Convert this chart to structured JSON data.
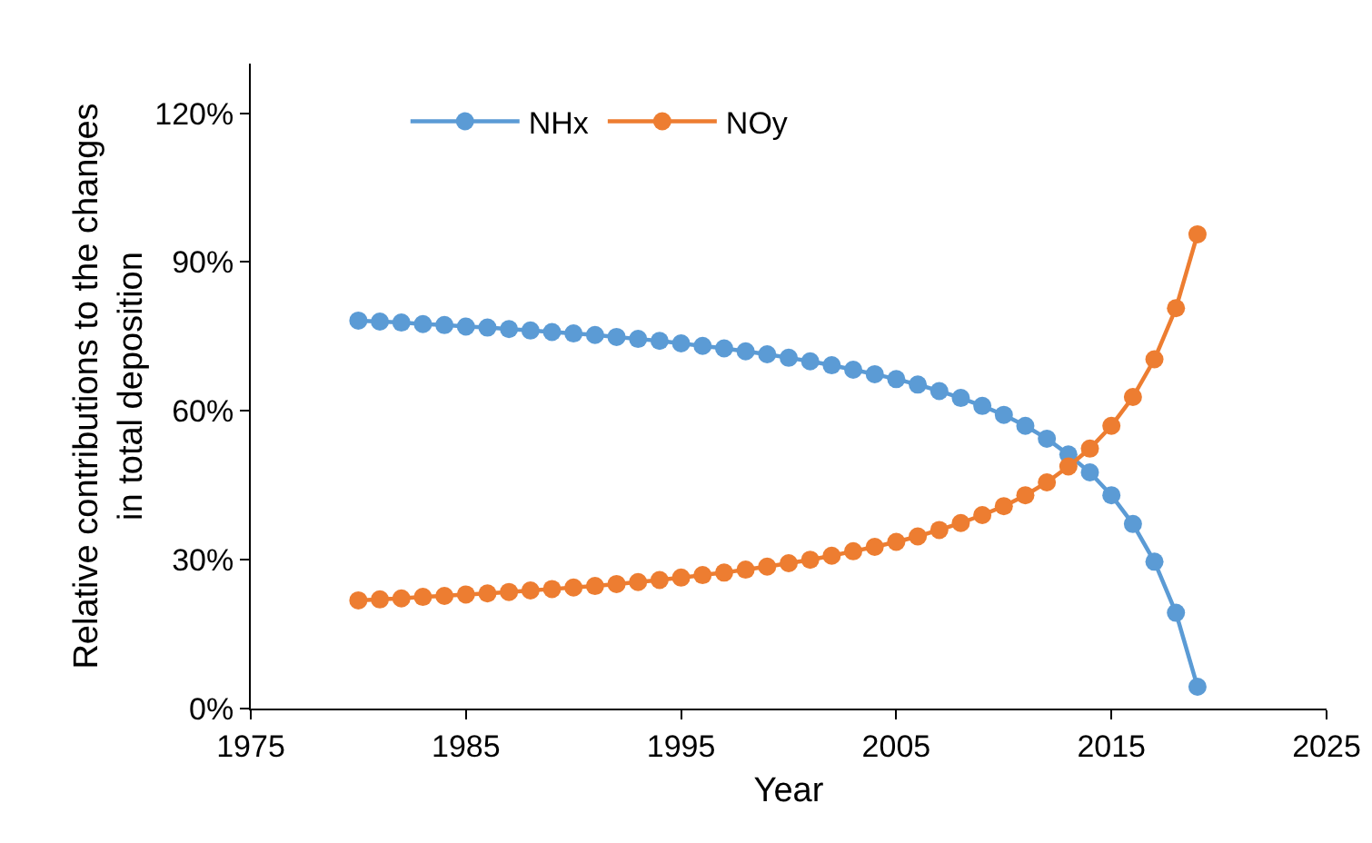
{
  "chart_data": {
    "type": "line",
    "xlabel": "Year",
    "ylabel": "Relative contributions to the changes in total deposition",
    "x": [
      1980,
      1981,
      1982,
      1983,
      1984,
      1985,
      1986,
      1987,
      1988,
      1989,
      1990,
      1991,
      1992,
      1993,
      1994,
      1995,
      1996,
      1997,
      1998,
      1999,
      2000,
      2001,
      2002,
      2003,
      2004,
      2005,
      2006,
      2007,
      2008,
      2009,
      2010,
      2011,
      2012,
      2013,
      2014,
      2015,
      2016,
      2017,
      2018,
      2019
    ],
    "series": [
      {
        "name": "NHx",
        "color": "#5b9bd5",
        "values": [
          78.2,
          78.0,
          77.8,
          77.5,
          77.3,
          77.0,
          76.8,
          76.5,
          76.2,
          75.9,
          75.6,
          75.3,
          74.9,
          74.5,
          74.1,
          73.6,
          73.1,
          72.6,
          72.0,
          71.4,
          70.7,
          70.0,
          69.2,
          68.3,
          67.4,
          66.4,
          65.3,
          64.0,
          62.6,
          61.0,
          59.2,
          57.0,
          54.4,
          51.2,
          47.6,
          43.0,
          37.2,
          29.6,
          19.3,
          4.4
        ]
      },
      {
        "name": "NOy",
        "color": "#ed7d31",
        "values": [
          21.8,
          22.0,
          22.2,
          22.5,
          22.7,
          23.0,
          23.2,
          23.5,
          23.8,
          24.1,
          24.4,
          24.7,
          25.1,
          25.5,
          25.9,
          26.4,
          26.9,
          27.4,
          28.0,
          28.6,
          29.3,
          30.0,
          30.8,
          31.7,
          32.6,
          33.6,
          34.7,
          36.0,
          37.4,
          39.0,
          40.8,
          43.0,
          45.6,
          48.8,
          52.4,
          57.0,
          62.8,
          70.4,
          80.7,
          95.6
        ]
      }
    ],
    "xlim": [
      1975,
      2025
    ],
    "xticks": [
      1975,
      1985,
      1995,
      2005,
      2015,
      2025
    ],
    "ylim": [
      0,
      130
    ],
    "yticks": [
      {
        "value": 0,
        "label": "0%"
      },
      {
        "value": 30,
        "label": "30%"
      },
      {
        "value": 60,
        "label": "60%"
      },
      {
        "value": 90,
        "label": "90%"
      },
      {
        "value": 120,
        "label": "120%"
      }
    ],
    "grid": false,
    "legend": "top left",
    "marker": "circle",
    "line_style": "solid"
  }
}
